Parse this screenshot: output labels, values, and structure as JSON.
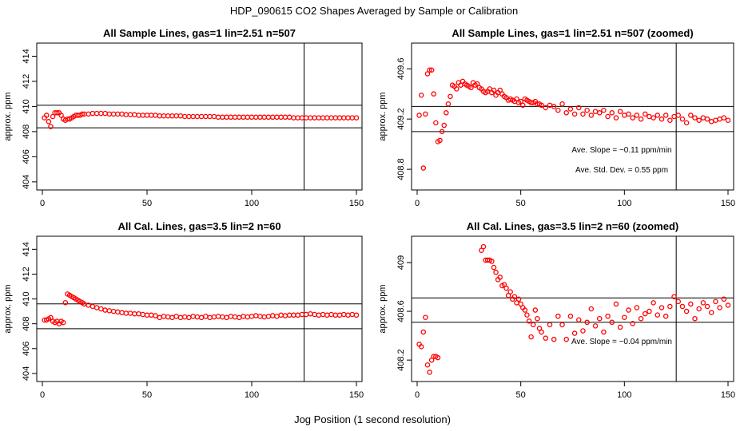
{
  "figure": {
    "title": "HDP_090615  CO2 Shapes Averaged by Sample or Calibration",
    "xlabel": "Jog Position (1 second resolution)"
  },
  "chart_data": [
    {
      "type": "scatter",
      "title": "All Sample Lines, gas=1 lin=2.51 n=507",
      "ylabel": "approx. ppm",
      "xlim": [
        0,
        150
      ],
      "ylim": [
        403.8,
        414.6
      ],
      "xticks": [
        0,
        50,
        100,
        150
      ],
      "yticks": [
        404,
        406,
        408,
        410,
        412,
        414
      ],
      "hlines": [
        410.1,
        408.3
      ],
      "vline": 125,
      "point_color": "#ff0000",
      "x": [
        1,
        2,
        3,
        4,
        5,
        6,
        7,
        8,
        9,
        10,
        11,
        12,
        13,
        14,
        15,
        16,
        17,
        18,
        19,
        20,
        22,
        24,
        26,
        28,
        30,
        32,
        34,
        36,
        38,
        40,
        42,
        44,
        46,
        48,
        50,
        52,
        54,
        56,
        58,
        60,
        62,
        64,
        66,
        68,
        70,
        72,
        74,
        76,
        78,
        80,
        82,
        84,
        86,
        88,
        90,
        92,
        94,
        96,
        98,
        100,
        102,
        104,
        106,
        108,
        110,
        112,
        114,
        116,
        118,
        120,
        122,
        124,
        126,
        128,
        130,
        132,
        134,
        136,
        138,
        140,
        142,
        144,
        146,
        148,
        150
      ],
      "y": [
        409.1,
        409.3,
        408.8,
        408.4,
        409.2,
        409.5,
        409.5,
        409.5,
        409.3,
        409.0,
        408.9,
        409.0,
        409.0,
        409.1,
        409.2,
        409.3,
        409.3,
        409.3,
        409.4,
        409.4,
        409.4,
        409.45,
        409.45,
        409.45,
        409.45,
        409.4,
        409.4,
        409.4,
        409.4,
        409.35,
        409.35,
        409.35,
        409.3,
        409.3,
        409.3,
        409.3,
        409.3,
        409.25,
        409.25,
        409.25,
        409.25,
        409.25,
        409.25,
        409.2,
        409.2,
        409.2,
        409.2,
        409.2,
        409.2,
        409.2,
        409.2,
        409.15,
        409.15,
        409.15,
        409.15,
        409.15,
        409.15,
        409.15,
        409.15,
        409.15,
        409.15,
        409.15,
        409.15,
        409.15,
        409.15,
        409.15,
        409.15,
        409.15,
        409.15,
        409.1,
        409.1,
        409.1,
        409.1,
        409.1,
        409.1,
        409.1,
        409.1,
        409.1,
        409.1,
        409.1,
        409.1,
        409.1,
        409.1,
        409.1,
        409.1
      ]
    },
    {
      "type": "scatter",
      "title": "All Sample Lines, gas=1 lin=2.51 n=507 (zoomed)",
      "ylabel": "approx. ppm",
      "xlim": [
        0,
        150
      ],
      "ylim": [
        408.68,
        409.76
      ],
      "xticks": [
        0,
        50,
        100,
        150
      ],
      "yticks": [
        408.8,
        409.2,
        409.6
      ],
      "hlines": [
        409.3,
        409.1
      ],
      "vline": 125,
      "point_color": "#ff0000",
      "annotations": [
        "Ave. Slope =  −0.11  ppm/min",
        "Ave. Std. Dev. =  0.55  ppm"
      ],
      "x": [
        1,
        2,
        3,
        4,
        5,
        6,
        7,
        8,
        9,
        10,
        11,
        12,
        13,
        14,
        15,
        16,
        17,
        18,
        19,
        20,
        21,
        22,
        23,
        24,
        25,
        26,
        27,
        28,
        29,
        30,
        31,
        32,
        33,
        34,
        35,
        36,
        37,
        38,
        39,
        40,
        41,
        42,
        43,
        44,
        45,
        46,
        47,
        48,
        49,
        50,
        51,
        52,
        53,
        54,
        55,
        56,
        57,
        58,
        59,
        60,
        62,
        64,
        66,
        68,
        70,
        72,
        74,
        76,
        78,
        80,
        82,
        84,
        86,
        88,
        90,
        92,
        94,
        96,
        98,
        100,
        102,
        104,
        106,
        108,
        110,
        112,
        114,
        116,
        118,
        120,
        122,
        124,
        126,
        128,
        130,
        132,
        134,
        136,
        138,
        140,
        142,
        144,
        146,
        148,
        150
      ],
      "y": [
        409.23,
        409.39,
        408.81,
        409.24,
        409.56,
        409.59,
        409.59,
        409.4,
        409.17,
        409.02,
        409.03,
        409.1,
        409.15,
        409.25,
        409.32,
        409.38,
        409.47,
        409.46,
        409.44,
        409.49,
        409.47,
        409.5,
        409.48,
        409.47,
        409.46,
        409.45,
        409.49,
        409.47,
        409.48,
        409.45,
        409.44,
        409.42,
        409.41,
        409.42,
        409.44,
        409.41,
        409.43,
        409.39,
        409.41,
        409.43,
        409.4,
        409.38,
        409.37,
        409.35,
        409.36,
        409.35,
        409.34,
        409.36,
        409.33,
        409.34,
        409.31,
        409.36,
        409.35,
        409.34,
        409.33,
        409.33,
        409.34,
        409.32,
        409.32,
        409.31,
        409.29,
        409.31,
        409.3,
        409.27,
        409.32,
        409.25,
        409.28,
        409.24,
        409.29,
        409.24,
        409.27,
        409.23,
        409.26,
        409.25,
        409.27,
        409.22,
        409.25,
        409.21,
        409.26,
        409.23,
        409.24,
        409.21,
        409.23,
        409.2,
        409.24,
        409.22,
        409.21,
        409.23,
        409.2,
        409.23,
        409.19,
        409.22,
        409.23,
        409.2,
        409.17,
        409.23,
        409.21,
        409.19,
        409.21,
        409.2,
        409.18,
        409.19,
        409.2,
        409.21,
        409.19
      ]
    },
    {
      "type": "scatter",
      "title": "All Cal. Lines, gas=3.5 lin=2 n=60",
      "ylabel": "approx. ppm",
      "xlim": [
        0,
        150
      ],
      "ylim": [
        403.8,
        414.6
      ],
      "xticks": [
        0,
        50,
        100,
        150
      ],
      "yticks": [
        404,
        406,
        408,
        410,
        412,
        414
      ],
      "hlines": [
        409.6,
        407.6
      ],
      "vline": 125,
      "point_color": "#ff0000",
      "x": [
        1,
        2,
        3,
        4,
        5,
        6,
        7,
        8,
        9,
        10,
        11,
        12,
        13,
        14,
        15,
        16,
        17,
        18,
        19,
        20,
        22,
        24,
        26,
        28,
        30,
        32,
        34,
        36,
        38,
        40,
        42,
        44,
        46,
        48,
        50,
        52,
        54,
        56,
        58,
        60,
        62,
        64,
        66,
        68,
        70,
        72,
        74,
        76,
        78,
        80,
        82,
        84,
        86,
        88,
        90,
        92,
        94,
        96,
        98,
        100,
        102,
        104,
        106,
        108,
        110,
        112,
        114,
        116,
        118,
        120,
        122,
        124,
        126,
        128,
        130,
        132,
        134,
        136,
        138,
        140,
        142,
        144,
        146,
        148,
        150
      ],
      "y": [
        408.3,
        408.3,
        408.4,
        408.5,
        408.2,
        408.1,
        408.2,
        408.0,
        408.2,
        408.1,
        409.7,
        410.4,
        410.3,
        410.2,
        410.1,
        410.0,
        409.9,
        409.8,
        409.7,
        409.6,
        409.5,
        409.4,
        409.3,
        409.2,
        409.1,
        409.05,
        409.0,
        408.95,
        408.9,
        408.85,
        408.85,
        408.8,
        408.8,
        408.75,
        408.7,
        408.7,
        408.65,
        408.5,
        408.6,
        408.55,
        408.5,
        408.6,
        408.5,
        408.55,
        408.5,
        408.6,
        408.55,
        408.5,
        408.6,
        408.5,
        408.55,
        408.6,
        408.55,
        408.5,
        408.6,
        408.55,
        408.5,
        408.6,
        408.55,
        408.6,
        408.65,
        408.6,
        408.55,
        408.6,
        408.65,
        408.6,
        408.7,
        408.65,
        408.7,
        408.7,
        408.7,
        408.75,
        408.75,
        408.8,
        408.75,
        408.7,
        408.75,
        408.7,
        408.75,
        408.7,
        408.7,
        408.75,
        408.7,
        408.75,
        408.7
      ]
    },
    {
      "type": "scatter",
      "title": "All Cal. Lines, gas=3.5 lin=2 n=60 (zoomed)",
      "ylabel": "approx. ppm",
      "xlim": [
        0,
        150
      ],
      "ylim": [
        408.07,
        409.17
      ],
      "xticks": [
        0,
        50,
        100,
        150
      ],
      "yticks": [
        408.2,
        408.6,
        409.0
      ],
      "hlines": [
        408.71,
        408.51
      ],
      "vline": 125,
      "point_color": "#ff0000",
      "annotations": [
        "Ave. Slope =  −0.04  ppm/min"
      ],
      "x": [
        1,
        2,
        3,
        4,
        5,
        6,
        7,
        8,
        9,
        10,
        31,
        32,
        33,
        34,
        35,
        36,
        37,
        38,
        39,
        40,
        41,
        42,
        43,
        44,
        45,
        46,
        47,
        48,
        49,
        50,
        51,
        52,
        53,
        54,
        55,
        56,
        57,
        58,
        59,
        60,
        62,
        64,
        66,
        68,
        70,
        72,
        74,
        76,
        78,
        80,
        82,
        84,
        86,
        88,
        90,
        92,
        94,
        96,
        98,
        100,
        102,
        104,
        106,
        108,
        110,
        112,
        114,
        116,
        118,
        120,
        122,
        124,
        126,
        128,
        130,
        132,
        134,
        136,
        138,
        140,
        142,
        144,
        146,
        148,
        150
      ],
      "y": [
        408.33,
        408.31,
        408.43,
        408.55,
        408.16,
        408.1,
        408.2,
        408.23,
        408.23,
        408.22,
        409.1,
        409.13,
        409.02,
        409.02,
        409.02,
        409.01,
        408.96,
        408.92,
        408.86,
        408.88,
        408.81,
        408.82,
        408.79,
        408.73,
        408.76,
        408.7,
        408.72,
        408.67,
        408.7,
        408.66,
        408.63,
        408.61,
        408.57,
        408.52,
        408.39,
        408.49,
        408.61,
        408.54,
        408.46,
        408.43,
        408.38,
        408.49,
        408.37,
        408.56,
        408.49,
        408.37,
        408.56,
        408.42,
        408.53,
        408.44,
        408.51,
        408.62,
        408.48,
        408.54,
        408.43,
        408.56,
        408.51,
        408.66,
        408.47,
        408.55,
        408.61,
        408.5,
        408.63,
        408.54,
        408.58,
        408.6,
        408.67,
        408.57,
        408.63,
        408.56,
        408.64,
        408.72,
        408.68,
        408.64,
        408.6,
        408.66,
        408.54,
        408.62,
        408.67,
        408.64,
        408.59,
        408.68,
        408.63,
        408.7,
        408.65
      ]
    }
  ]
}
